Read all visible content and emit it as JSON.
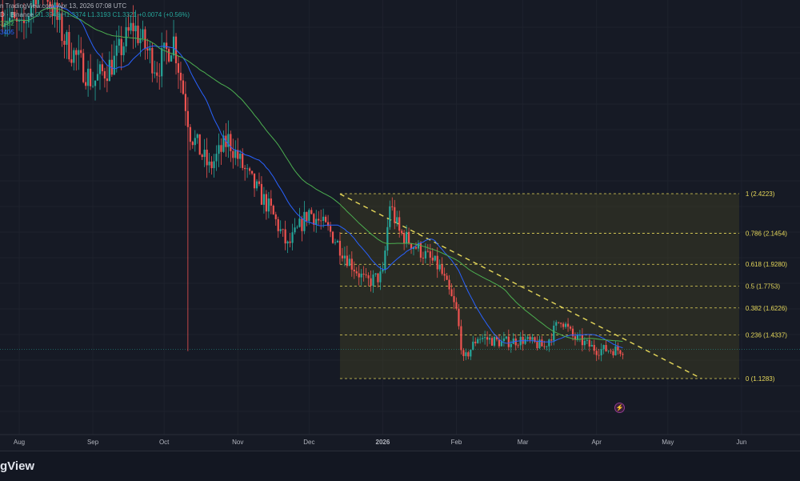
{
  "header": {
    "line1_prefix": "n TradingView.com, Apr 13, 2026 07:08 UTC",
    "pair_exchange": "D · Binance",
    "ohlc": "O1.3246  H1.3374  L1.3193  C1.3321  +0.0074 (+0.56%)",
    "ma_slow_value": "3782",
    "ma_fast_value": "3405"
  },
  "footer": {
    "brand": "gView"
  },
  "colors": {
    "up": "#26a69a",
    "down": "#ef5350",
    "ma_fast": "#2962ff",
    "ma_slow": "#4caf50",
    "fib": "#e6d85a",
    "fib_fill": "#3b3a25"
  },
  "chart_data": {
    "type": "candlestick",
    "x_axis_labels": [
      "Aug",
      "Sep",
      "Oct",
      "Nov",
      "Dec",
      "2026",
      "Feb",
      "Mar",
      "Apr",
      "May",
      "Jun"
    ],
    "fib_levels": [
      {
        "ratio": "1",
        "value": 2.4223,
        "label": "1 (2.4223)"
      },
      {
        "ratio": "0.786",
        "value": 2.1454,
        "label": "0.786 (2.1454)"
      },
      {
        "ratio": "0.618",
        "value": 1.928,
        "label": "0.618 (1.9280)"
      },
      {
        "ratio": "0.5",
        "value": 1.7753,
        "label": "0.5 (1.7753)"
      },
      {
        "ratio": "0.382",
        "value": 1.6226,
        "label": "0.382 (1.6226)"
      },
      {
        "ratio": "0.236",
        "value": 1.4337,
        "label": "0.236 (1.4337)"
      },
      {
        "ratio": "0",
        "value": 1.1283,
        "label": "0 (1.1283)"
      }
    ],
    "last_close": 1.3321,
    "trendline": {
      "from": {
        "date": "2025-12-14",
        "price": 2.42
      },
      "to": {
        "date": "2026-05-15",
        "price": 1.13
      }
    },
    "price_path": [
      [
        "2025-07-25",
        3.7
      ],
      [
        "2025-08-02",
        3.55
      ],
      [
        "2025-08-10",
        3.95
      ],
      [
        "2025-08-20",
        3.5
      ],
      [
        "2025-09-01",
        3.2
      ],
      [
        "2025-09-10",
        3.35
      ],
      [
        "2025-09-18",
        3.6
      ],
      [
        "2025-09-28",
        3.3
      ],
      [
        "2025-10-05",
        3.5
      ],
      [
        "2025-10-10",
        3.05
      ],
      [
        "2025-10-12",
        2.85
      ],
      [
        "2025-10-20",
        2.6
      ],
      [
        "2025-10-28",
        2.8
      ],
      [
        "2025-11-05",
        2.55
      ],
      [
        "2025-11-15",
        2.3
      ],
      [
        "2025-11-22",
        2.05
      ],
      [
        "2025-12-01",
        2.3
      ],
      [
        "2025-12-10",
        2.15
      ],
      [
        "2025-12-18",
        1.95
      ],
      [
        "2025-12-25",
        1.8
      ],
      [
        "2026-01-01",
        1.85
      ],
      [
        "2026-01-04",
        2.35
      ],
      [
        "2026-01-08",
        2.15
      ],
      [
        "2026-01-15",
        2.05
      ],
      [
        "2026-01-25",
        1.9
      ],
      [
        "2026-02-01",
        1.6
      ],
      [
        "2026-02-04",
        1.25
      ],
      [
        "2026-02-10",
        1.42
      ],
      [
        "2026-02-20",
        1.38
      ],
      [
        "2026-03-01",
        1.4
      ],
      [
        "2026-03-10",
        1.35
      ],
      [
        "2026-03-17",
        1.55
      ],
      [
        "2026-03-22",
        1.42
      ],
      [
        "2026-04-01",
        1.33
      ],
      [
        "2026-04-13",
        1.33
      ]
    ]
  }
}
